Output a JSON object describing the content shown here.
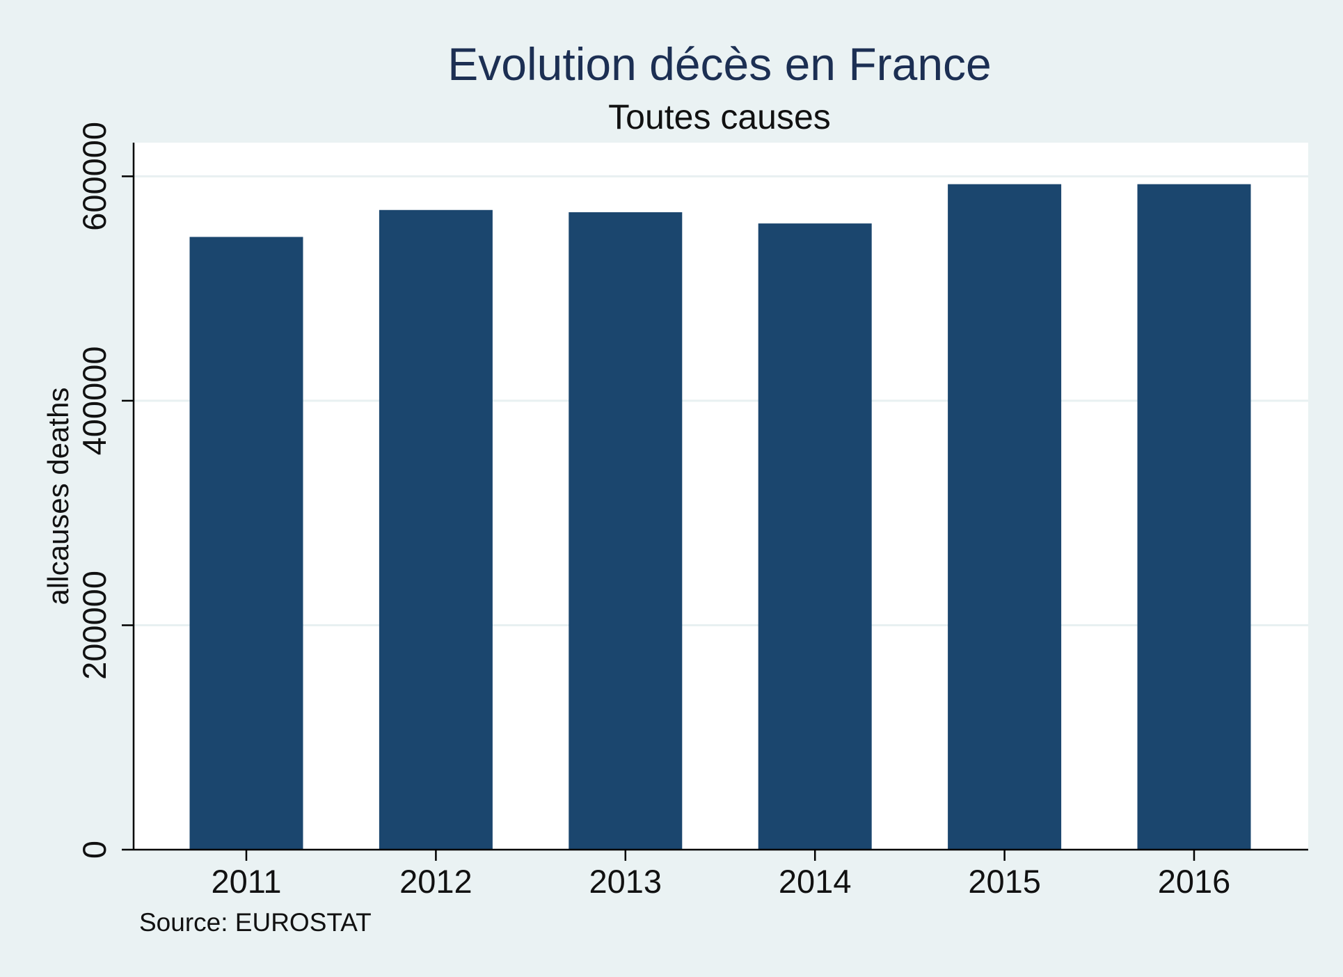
{
  "chart_data": {
    "type": "bar",
    "title": "Evolution décès en France",
    "subtitle": "Toutes causes",
    "xlabel": "",
    "ylabel": "allcauses deaths",
    "categories": [
      "2011",
      "2012",
      "2013",
      "2014",
      "2015",
      "2016"
    ],
    "values": [
      546000,
      570000,
      568000,
      558000,
      593000,
      593000
    ],
    "ylim": [
      0,
      630000
    ],
    "yticks": [
      0,
      200000,
      400000,
      600000
    ],
    "ytick_labels": [
      "0",
      "200000",
      "400000",
      "600000"
    ],
    "grid": true,
    "legend": "none",
    "note": "Source: EUROSTAT",
    "colors": {
      "bar": "#1b466e",
      "plot_background": "#ffffff",
      "page_background": "#eaf2f3",
      "gridline": "#e8f0f1",
      "title": "#1c2f53"
    }
  }
}
